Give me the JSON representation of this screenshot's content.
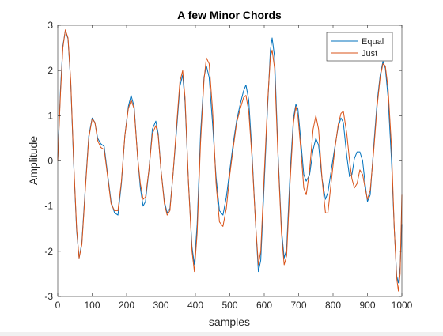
{
  "chart_data": {
    "type": "line",
    "title": "A few Minor Chords",
    "xlabel": "samples",
    "ylabel": "Amplitude",
    "xlim": [
      0,
      1000
    ],
    "ylim": [
      -3,
      3
    ],
    "xticks": [
      "0",
      "100",
      "200",
      "300",
      "400",
      "500",
      "600",
      "700",
      "800",
      "900",
      "1000"
    ],
    "yticks": [
      "-3",
      "-2",
      "-1",
      "0",
      "1",
      "2",
      "3"
    ],
    "grid": false,
    "legend": {
      "position": "top-right"
    },
    "series": [
      {
        "name": "Equal",
        "color": "#0072bd",
        "points": [
          [
            0,
            0.05
          ],
          [
            8,
            1.6
          ],
          [
            15,
            2.55
          ],
          [
            22,
            2.88
          ],
          [
            30,
            2.7
          ],
          [
            38,
            1.7
          ],
          [
            46,
            0.0
          ],
          [
            55,
            -1.55
          ],
          [
            62,
            -2.15
          ],
          [
            70,
            -1.8
          ],
          [
            80,
            -0.6
          ],
          [
            90,
            0.55
          ],
          [
            100,
            0.95
          ],
          [
            108,
            0.85
          ],
          [
            116,
            0.5
          ],
          [
            125,
            0.38
          ],
          [
            135,
            0.32
          ],
          [
            145,
            -0.3
          ],
          [
            155,
            -0.9
          ],
          [
            165,
            -1.15
          ],
          [
            175,
            -1.2
          ],
          [
            185,
            -0.5
          ],
          [
            195,
            0.55
          ],
          [
            205,
            1.2
          ],
          [
            213,
            1.45
          ],
          [
            222,
            1.2
          ],
          [
            232,
            0.1
          ],
          [
            240,
            -0.6
          ],
          [
            248,
            -1.0
          ],
          [
            255,
            -0.9
          ],
          [
            265,
            -0.2
          ],
          [
            275,
            0.7
          ],
          [
            285,
            0.88
          ],
          [
            292,
            0.6
          ],
          [
            300,
            -0.2
          ],
          [
            310,
            -0.9
          ],
          [
            318,
            -1.15
          ],
          [
            326,
            -1.05
          ],
          [
            335,
            -0.3
          ],
          [
            345,
            0.65
          ],
          [
            355,
            1.65
          ],
          [
            363,
            1.9
          ],
          [
            370,
            1.3
          ],
          [
            380,
            -0.5
          ],
          [
            390,
            -1.9
          ],
          [
            397,
            -2.3
          ],
          [
            405,
            -1.4
          ],
          [
            415,
            0.6
          ],
          [
            425,
            1.85
          ],
          [
            432,
            2.1
          ],
          [
            440,
            1.85
          ],
          [
            450,
            0.8
          ],
          [
            460,
            -0.35
          ],
          [
            470,
            -1.1
          ],
          [
            480,
            -1.2
          ],
          [
            490,
            -0.8
          ],
          [
            500,
            -0.2
          ],
          [
            510,
            0.4
          ],
          [
            520,
            0.9
          ],
          [
            530,
            1.25
          ],
          [
            540,
            1.55
          ],
          [
            547,
            1.68
          ],
          [
            555,
            1.35
          ],
          [
            565,
            0.1
          ],
          [
            575,
            -1.4
          ],
          [
            583,
            -2.45
          ],
          [
            590,
            -2.2
          ],
          [
            600,
            -0.5
          ],
          [
            610,
            1.2
          ],
          [
            618,
            2.45
          ],
          [
            623,
            2.72
          ],
          [
            630,
            2.3
          ],
          [
            640,
            0.2
          ],
          [
            650,
            -1.5
          ],
          [
            658,
            -2.15
          ],
          [
            665,
            -1.95
          ],
          [
            675,
            -0.3
          ],
          [
            685,
            0.95
          ],
          [
            692,
            1.25
          ],
          [
            698,
            1.15
          ],
          [
            708,
            0.3
          ],
          [
            715,
            -0.3
          ],
          [
            722,
            -0.45
          ],
          [
            732,
            -0.3
          ],
          [
            742,
            0.25
          ],
          [
            750,
            0.5
          ],
          [
            758,
            0.35
          ],
          [
            768,
            -0.4
          ],
          [
            778,
            -0.85
          ],
          [
            785,
            -0.7
          ],
          [
            795,
            -0.2
          ],
          [
            805,
            0.3
          ],
          [
            815,
            0.75
          ],
          [
            823,
            0.95
          ],
          [
            830,
            0.85
          ],
          [
            840,
            0.1
          ],
          [
            848,
            -0.35
          ],
          [
            855,
            -0.3
          ],
          [
            862,
            0.05
          ],
          [
            870,
            0.2
          ],
          [
            878,
            0.2
          ],
          [
            886,
            0.0
          ],
          [
            893,
            -0.5
          ],
          [
            900,
            -0.9
          ],
          [
            908,
            -0.75
          ],
          [
            918,
            0.3
          ],
          [
            928,
            1.3
          ],
          [
            937,
            1.9
          ],
          [
            945,
            2.2
          ],
          [
            952,
            2.05
          ],
          [
            960,
            1.4
          ],
          [
            970,
            0.0
          ],
          [
            978,
            -1.5
          ],
          [
            985,
            -2.55
          ],
          [
            990,
            -2.7
          ],
          [
            995,
            -2.35
          ],
          [
            1000,
            -1.4
          ]
        ]
      },
      {
        "name": "Just",
        "color": "#d95319",
        "points": [
          [
            0,
            0.0
          ],
          [
            8,
            1.5
          ],
          [
            15,
            2.5
          ],
          [
            22,
            2.9
          ],
          [
            30,
            2.72
          ],
          [
            38,
            1.75
          ],
          [
            46,
            0.05
          ],
          [
            55,
            -1.5
          ],
          [
            62,
            -2.15
          ],
          [
            70,
            -1.85
          ],
          [
            80,
            -0.65
          ],
          [
            90,
            0.5
          ],
          [
            100,
            0.93
          ],
          [
            108,
            0.85
          ],
          [
            116,
            0.45
          ],
          [
            125,
            0.3
          ],
          [
            135,
            0.25
          ],
          [
            145,
            -0.35
          ],
          [
            155,
            -0.95
          ],
          [
            165,
            -1.1
          ],
          [
            175,
            -1.1
          ],
          [
            185,
            -0.45
          ],
          [
            195,
            0.55
          ],
          [
            205,
            1.15
          ],
          [
            213,
            1.35
          ],
          [
            222,
            1.15
          ],
          [
            232,
            0.1
          ],
          [
            240,
            -0.5
          ],
          [
            248,
            -0.85
          ],
          [
            255,
            -0.8
          ],
          [
            265,
            -0.2
          ],
          [
            275,
            0.6
          ],
          [
            285,
            0.78
          ],
          [
            292,
            0.55
          ],
          [
            300,
            -0.2
          ],
          [
            310,
            -0.95
          ],
          [
            318,
            -1.2
          ],
          [
            326,
            -1.1
          ],
          [
            335,
            -0.3
          ],
          [
            345,
            0.75
          ],
          [
            355,
            1.75
          ],
          [
            363,
            2.0
          ],
          [
            370,
            1.4
          ],
          [
            380,
            -0.5
          ],
          [
            390,
            -2.0
          ],
          [
            397,
            -2.45
          ],
          [
            405,
            -1.6
          ],
          [
            415,
            0.4
          ],
          [
            425,
            1.8
          ],
          [
            432,
            2.28
          ],
          [
            440,
            2.15
          ],
          [
            450,
            1.1
          ],
          [
            460,
            -0.5
          ],
          [
            470,
            -1.35
          ],
          [
            480,
            -1.45
          ],
          [
            490,
            -1.05
          ],
          [
            500,
            -0.3
          ],
          [
            510,
            0.3
          ],
          [
            520,
            0.85
          ],
          [
            530,
            1.15
          ],
          [
            540,
            1.4
          ],
          [
            547,
            1.45
          ],
          [
            555,
            1.1
          ],
          [
            565,
            0.0
          ],
          [
            575,
            -1.4
          ],
          [
            583,
            -2.3
          ],
          [
            590,
            -2.0
          ],
          [
            600,
            -0.3
          ],
          [
            610,
            1.3
          ],
          [
            618,
            2.3
          ],
          [
            623,
            2.45
          ],
          [
            630,
            2.05
          ],
          [
            640,
            0.1
          ],
          [
            650,
            -1.6
          ],
          [
            658,
            -2.3
          ],
          [
            665,
            -2.1
          ],
          [
            675,
            -0.5
          ],
          [
            685,
            0.85
          ],
          [
            692,
            1.2
          ],
          [
            698,
            1.0
          ],
          [
            708,
            0.1
          ],
          [
            715,
            -0.6
          ],
          [
            722,
            -0.75
          ],
          [
            732,
            -0.2
          ],
          [
            742,
            0.7
          ],
          [
            750,
            1.0
          ],
          [
            758,
            0.7
          ],
          [
            768,
            -0.4
          ],
          [
            778,
            -1.15
          ],
          [
            785,
            -1.15
          ],
          [
            795,
            -0.45
          ],
          [
            805,
            0.25
          ],
          [
            815,
            0.8
          ],
          [
            823,
            1.05
          ],
          [
            830,
            1.1
          ],
          [
            840,
            0.6
          ],
          [
            848,
            0.0
          ],
          [
            855,
            -0.4
          ],
          [
            862,
            -0.6
          ],
          [
            870,
            -0.5
          ],
          [
            878,
            -0.2
          ],
          [
            886,
            -0.3
          ],
          [
            893,
            -0.6
          ],
          [
            900,
            -0.85
          ],
          [
            908,
            -0.65
          ],
          [
            918,
            0.2
          ],
          [
            928,
            1.2
          ],
          [
            937,
            1.85
          ],
          [
            945,
            2.15
          ],
          [
            952,
            2.1
          ],
          [
            960,
            1.6
          ],
          [
            970,
            0.3
          ],
          [
            978,
            -1.5
          ],
          [
            985,
            -2.6
          ],
          [
            990,
            -2.88
          ],
          [
            995,
            -2.5
          ],
          [
            1000,
            -0.75
          ]
        ]
      }
    ]
  }
}
